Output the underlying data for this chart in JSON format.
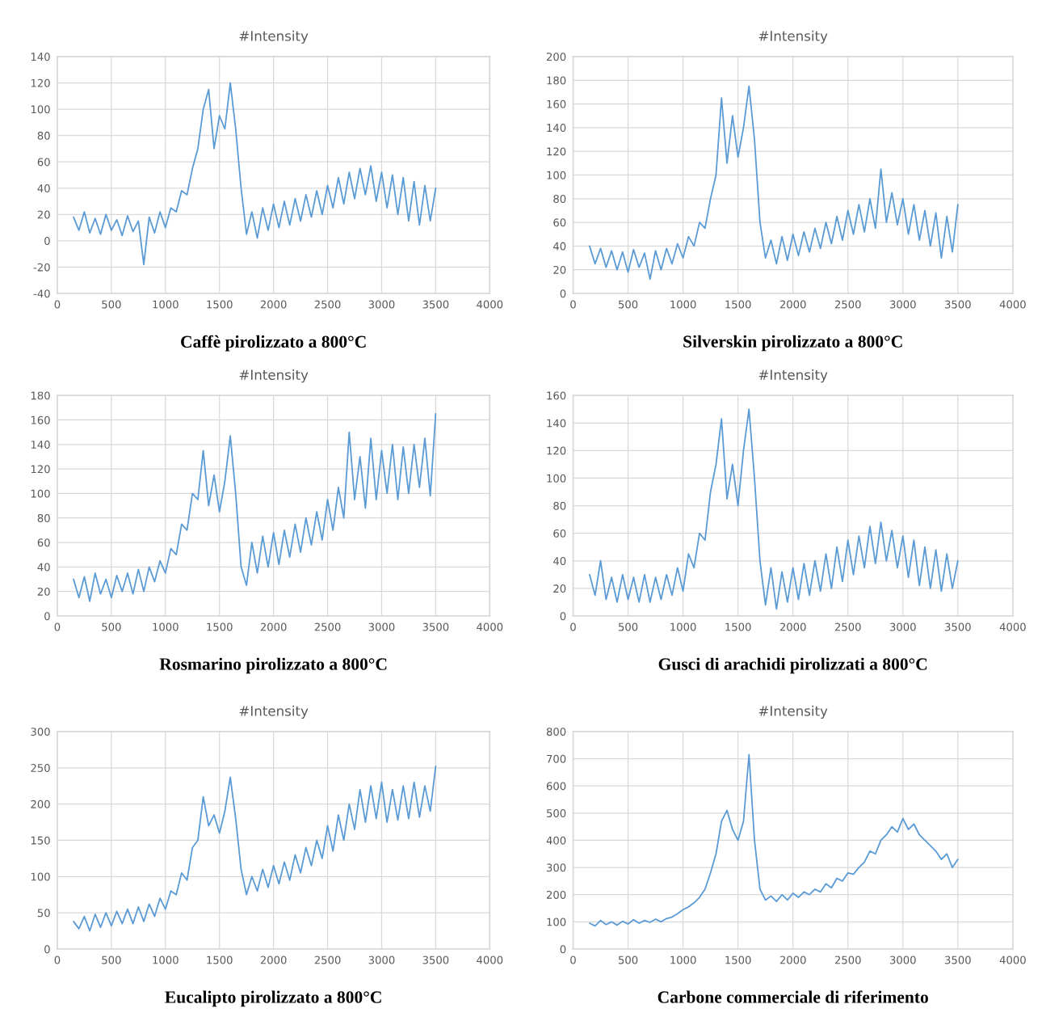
{
  "chart_data": [
    {
      "type": "line",
      "title": "#Intensity",
      "xlabel": "Caffè pirolizzato a 800°C",
      "grid": true,
      "xlim": [
        0,
        4000
      ],
      "xticks": [
        0,
        500,
        1000,
        1500,
        2000,
        2500,
        3000,
        3500,
        4000
      ],
      "ylim": [
        -40,
        140
      ],
      "yticks": [
        -40,
        -20,
        0,
        20,
        40,
        60,
        80,
        100,
        120,
        140
      ],
      "x": [
        150,
        200,
        250,
        300,
        350,
        400,
        450,
        500,
        550,
        600,
        650,
        700,
        750,
        800,
        850,
        900,
        950,
        1000,
        1050,
        1100,
        1150,
        1200,
        1250,
        1300,
        1350,
        1400,
        1450,
        1500,
        1550,
        1600,
        1650,
        1700,
        1750,
        1800,
        1850,
        1900,
        1950,
        2000,
        2050,
        2100,
        2150,
        2200,
        2250,
        2300,
        2350,
        2400,
        2450,
        2500,
        2550,
        2600,
        2650,
        2700,
        2750,
        2800,
        2850,
        2900,
        2950,
        3000,
        3050,
        3100,
        3150,
        3200,
        3250,
        3300,
        3350,
        3400,
        3450,
        3500
      ],
      "series": [
        {
          "color": "#5b9bd5",
          "values": [
            18,
            8,
            22,
            6,
            17,
            5,
            20,
            8,
            16,
            4,
            19,
            7,
            15,
            -18,
            18,
            6,
            22,
            10,
            25,
            22,
            38,
            35,
            55,
            70,
            100,
            115,
            70,
            95,
            85,
            120,
            85,
            40,
            5,
            22,
            2,
            25,
            8,
            28,
            10,
            30,
            12,
            32,
            15,
            35,
            18,
            38,
            20,
            42,
            25,
            48,
            28,
            52,
            32,
            55,
            35,
            57,
            30,
            52,
            25,
            50,
            20,
            48,
            15,
            45,
            12,
            42,
            15,
            40
          ]
        }
      ]
    },
    {
      "type": "line",
      "title": "#Intensity",
      "xlabel": "Silverskin pirolizzato a 800°C",
      "grid": true,
      "xlim": [
        0,
        4000
      ],
      "xticks": [
        0,
        500,
        1000,
        1500,
        2000,
        2500,
        3000,
        3500,
        4000
      ],
      "ylim": [
        0,
        200
      ],
      "yticks": [
        0,
        20,
        40,
        60,
        80,
        100,
        120,
        140,
        160,
        180,
        200
      ],
      "x": [
        150,
        200,
        250,
        300,
        350,
        400,
        450,
        500,
        550,
        600,
        650,
        700,
        750,
        800,
        850,
        900,
        950,
        1000,
        1050,
        1100,
        1150,
        1200,
        1250,
        1300,
        1350,
        1400,
        1450,
        1500,
        1550,
        1600,
        1650,
        1700,
        1750,
        1800,
        1850,
        1900,
        1950,
        2000,
        2050,
        2100,
        2150,
        2200,
        2250,
        2300,
        2350,
        2400,
        2450,
        2500,
        2550,
        2600,
        2650,
        2700,
        2750,
        2800,
        2850,
        2900,
        2950,
        3000,
        3050,
        3100,
        3150,
        3200,
        3250,
        3300,
        3350,
        3400,
        3450,
        3500
      ],
      "series": [
        {
          "color": "#5b9bd5",
          "values": [
            40,
            25,
            38,
            22,
            36,
            20,
            35,
            18,
            37,
            22,
            34,
            12,
            36,
            20,
            38,
            25,
            42,
            30,
            48,
            40,
            60,
            55,
            80,
            100,
            165,
            110,
            150,
            115,
            140,
            175,
            130,
            60,
            30,
            45,
            25,
            48,
            28,
            50,
            32,
            52,
            35,
            55,
            38,
            60,
            42,
            65,
            45,
            70,
            50,
            75,
            52,
            80,
            55,
            105,
            60,
            85,
            58,
            80,
            50,
            75,
            45,
            70,
            40,
            68,
            30,
            65,
            35,
            75
          ]
        }
      ]
    },
    {
      "type": "line",
      "title": "#Intensity",
      "xlabel": "Rosmarino pirolizzato a 800°C",
      "grid": true,
      "xlim": [
        0,
        4000
      ],
      "xticks": [
        0,
        500,
        1000,
        1500,
        2000,
        2500,
        3000,
        3500,
        4000
      ],
      "ylim": [
        0,
        180
      ],
      "yticks": [
        0,
        20,
        40,
        60,
        80,
        100,
        120,
        140,
        160,
        180
      ],
      "x": [
        150,
        200,
        250,
        300,
        350,
        400,
        450,
        500,
        550,
        600,
        650,
        700,
        750,
        800,
        850,
        900,
        950,
        1000,
        1050,
        1100,
        1150,
        1200,
        1250,
        1300,
        1350,
        1400,
        1450,
        1500,
        1550,
        1600,
        1650,
        1700,
        1750,
        1800,
        1850,
        1900,
        1950,
        2000,
        2050,
        2100,
        2150,
        2200,
        2250,
        2300,
        2350,
        2400,
        2450,
        2500,
        2550,
        2600,
        2650,
        2700,
        2750,
        2800,
        2850,
        2900,
        2950,
        3000,
        3050,
        3100,
        3150,
        3200,
        3250,
        3300,
        3350,
        3400,
        3450,
        3500
      ],
      "series": [
        {
          "color": "#5b9bd5",
          "values": [
            30,
            15,
            32,
            12,
            35,
            18,
            30,
            15,
            33,
            20,
            35,
            18,
            38,
            20,
            40,
            28,
            45,
            35,
            55,
            50,
            75,
            70,
            100,
            95,
            135,
            90,
            115,
            85,
            110,
            147,
            100,
            40,
            25,
            60,
            35,
            65,
            40,
            68,
            42,
            70,
            48,
            75,
            52,
            80,
            58,
            85,
            62,
            95,
            70,
            105,
            80,
            150,
            95,
            130,
            88,
            145,
            95,
            135,
            100,
            140,
            95,
            138,
            100,
            140,
            105,
            145,
            98,
            165
          ]
        }
      ]
    },
    {
      "type": "line",
      "title": "#Intensity",
      "xlabel": "Gusci di arachidi pirolizzati a 800°C",
      "grid": true,
      "xlim": [
        0,
        4000
      ],
      "xticks": [
        0,
        500,
        1000,
        1500,
        2000,
        2500,
        3000,
        3500,
        4000
      ],
      "ylim": [
        0,
        160
      ],
      "yticks": [
        0,
        20,
        40,
        60,
        80,
        100,
        120,
        140,
        160
      ],
      "x": [
        150,
        200,
        250,
        300,
        350,
        400,
        450,
        500,
        550,
        600,
        650,
        700,
        750,
        800,
        850,
        900,
        950,
        1000,
        1050,
        1100,
        1150,
        1200,
        1250,
        1300,
        1350,
        1400,
        1450,
        1500,
        1550,
        1600,
        1650,
        1700,
        1750,
        1800,
        1850,
        1900,
        1950,
        2000,
        2050,
        2100,
        2150,
        2200,
        2250,
        2300,
        2350,
        2400,
        2450,
        2500,
        2550,
        2600,
        2650,
        2700,
        2750,
        2800,
        2850,
        2900,
        2950,
        3000,
        3050,
        3100,
        3150,
        3200,
        3250,
        3300,
        3350,
        3400,
        3450,
        3500
      ],
      "series": [
        {
          "color": "#5b9bd5",
          "values": [
            30,
            15,
            40,
            12,
            28,
            10,
            30,
            12,
            28,
            10,
            30,
            10,
            28,
            12,
            30,
            15,
            35,
            18,
            45,
            35,
            60,
            55,
            90,
            110,
            143,
            85,
            110,
            80,
            120,
            150,
            100,
            40,
            8,
            35,
            5,
            32,
            10,
            35,
            12,
            38,
            15,
            40,
            18,
            45,
            20,
            50,
            25,
            55,
            30,
            58,
            35,
            65,
            38,
            68,
            40,
            62,
            35,
            58,
            28,
            55,
            22,
            50,
            20,
            48,
            18,
            45,
            20,
            40
          ]
        }
      ]
    },
    {
      "type": "line",
      "title": "#Intensity",
      "xlabel": "Eucalipto pirolizzato a 800°C",
      "grid": true,
      "xlim": [
        0,
        4000
      ],
      "xticks": [
        0,
        500,
        1000,
        1500,
        2000,
        2500,
        3000,
        3500,
        4000
      ],
      "ylim": [
        0,
        300
      ],
      "yticks": [
        0,
        50,
        100,
        150,
        200,
        250,
        300
      ],
      "x": [
        150,
        200,
        250,
        300,
        350,
        400,
        450,
        500,
        550,
        600,
        650,
        700,
        750,
        800,
        850,
        900,
        950,
        1000,
        1050,
        1100,
        1150,
        1200,
        1250,
        1300,
        1350,
        1400,
        1450,
        1500,
        1550,
        1600,
        1650,
        1700,
        1750,
        1800,
        1850,
        1900,
        1950,
        2000,
        2050,
        2100,
        2150,
        2200,
        2250,
        2300,
        2350,
        2400,
        2450,
        2500,
        2550,
        2600,
        2650,
        2700,
        2750,
        2800,
        2850,
        2900,
        2950,
        3000,
        3050,
        3100,
        3150,
        3200,
        3250,
        3300,
        3350,
        3400,
        3450,
        3500
      ],
      "series": [
        {
          "color": "#5b9bd5",
          "values": [
            38,
            28,
            45,
            25,
            48,
            30,
            50,
            32,
            52,
            35,
            55,
            35,
            58,
            38,
            62,
            45,
            70,
            55,
            80,
            75,
            105,
            95,
            140,
            150,
            210,
            170,
            185,
            160,
            190,
            237,
            180,
            110,
            75,
            100,
            80,
            110,
            85,
            115,
            90,
            120,
            95,
            130,
            105,
            140,
            115,
            150,
            125,
            170,
            135,
            185,
            150,
            200,
            165,
            220,
            175,
            225,
            180,
            230,
            175,
            220,
            178,
            225,
            180,
            230,
            182,
            225,
            190,
            252
          ]
        }
      ]
    },
    {
      "type": "line",
      "title": "#Intensity",
      "xlabel": "Carbone commerciale di riferimento",
      "grid": true,
      "xlim": [
        0,
        4000
      ],
      "xticks": [
        0,
        500,
        1000,
        1500,
        2000,
        2500,
        3000,
        3500,
        4000
      ],
      "ylim": [
        0,
        800
      ],
      "yticks": [
        0,
        100,
        200,
        300,
        400,
        500,
        600,
        700,
        800
      ],
      "x": [
        150,
        200,
        250,
        300,
        350,
        400,
        450,
        500,
        550,
        600,
        650,
        700,
        750,
        800,
        850,
        900,
        950,
        1000,
        1050,
        1100,
        1150,
        1200,
        1250,
        1300,
        1350,
        1400,
        1450,
        1500,
        1550,
        1600,
        1650,
        1700,
        1750,
        1800,
        1850,
        1900,
        1950,
        2000,
        2050,
        2100,
        2150,
        2200,
        2250,
        2300,
        2350,
        2400,
        2450,
        2500,
        2550,
        2600,
        2650,
        2700,
        2750,
        2800,
        2850,
        2900,
        2950,
        3000,
        3050,
        3100,
        3150,
        3200,
        3250,
        3300,
        3350,
        3400,
        3450,
        3500
      ],
      "series": [
        {
          "color": "#5b9bd5",
          "values": [
            95,
            85,
            105,
            90,
            100,
            88,
            102,
            92,
            108,
            95,
            105,
            98,
            110,
            100,
            112,
            118,
            130,
            145,
            155,
            170,
            190,
            220,
            280,
            350,
            470,
            510,
            440,
            400,
            470,
            715,
            400,
            220,
            180,
            195,
            175,
            200,
            180,
            205,
            190,
            210,
            200,
            220,
            210,
            240,
            225,
            260,
            250,
            280,
            275,
            300,
            320,
            360,
            350,
            400,
            420,
            450,
            430,
            480,
            440,
            460,
            420,
            400,
            380,
            360,
            330,
            350,
            300,
            330
          ]
        }
      ]
    }
  ]
}
